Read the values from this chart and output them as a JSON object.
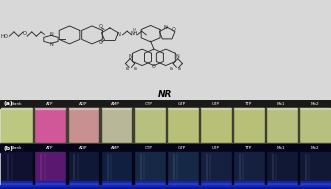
{
  "structure_label": "NR",
  "panel_a_label": "(a)",
  "panel_b_label": "(b)",
  "labels_a": [
    "Blank",
    "ATP",
    "ADP",
    "AMP",
    "CTP",
    "GTP",
    "UTP",
    "TTP",
    "Mx1",
    "Mx2"
  ],
  "labels_b": [
    "Blank",
    "ATP",
    "ADP",
    "AMP",
    "CTP",
    "GTP",
    "UTP",
    "TTP",
    "Mx1",
    "Mx2"
  ],
  "bg_struct": "#e8e8e8",
  "vial_colors_a_top": [
    "#c5cc8a",
    "#d966a0",
    "#c8a0b0",
    "#c8c0aa",
    "#c8cc90",
    "#c8cc88",
    "#c8cc88",
    "#c8cc88",
    "#c8cc88",
    "#c8cc88"
  ],
  "vial_colors_a_bot": [
    "#b8c278",
    "#e070b0",
    "#c090a8",
    "#bcb098",
    "#bcbE80",
    "#bcbe78",
    "#bcbe78",
    "#bcbe78",
    "#bcbe78",
    "#bcbe78"
  ],
  "vial_header_color": "#1a1a18",
  "vial_header_text": "#ffffff",
  "panel_a_bg": "#888878",
  "vial_colors_b": [
    "#0d1535",
    "#4a1868",
    "#0d1840",
    "#0d2045",
    "#1a3050",
    "#1a3050",
    "#182848",
    "#182848",
    "#182848",
    "#182848"
  ],
  "panel_b_bg": "#080820",
  "uv_glow_color": "#1428b0",
  "struct_line_color": "#2a2a2a",
  "struct_bg": "#d8d8d8",
  "ho_label": "HO",
  "o_label": "O",
  "n_label": "N",
  "h_label": "H",
  "et_label": "Et"
}
